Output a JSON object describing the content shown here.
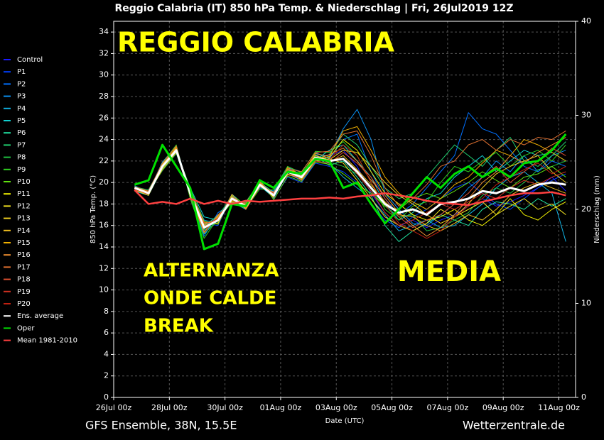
{
  "chart_data": {
    "type": "line",
    "title": "Reggio Calabria  (IT)  850 hPa Temp. & Niederschlag | Fri, 26Jul2019 12Z",
    "y_label": "850 hPa Temp. (°C)",
    "y2_label": "Niederschlag (mm)",
    "x_label": "Date (UTC)",
    "footer_left": "GFS Ensemble, 38N, 15.5E",
    "footer_right": "Wetterzentrale.de",
    "annotations": [
      "REGGIO CALABRIA",
      "ALTERNANZA",
      "ONDE CALDE",
      "BREAK",
      "MEDIA"
    ],
    "grid": true,
    "legend": "left",
    "xlim": [
      0,
      16.6
    ],
    "ylim": [
      0,
      35
    ],
    "y2lim": [
      0,
      40
    ],
    "xticks": [
      {
        "value": 0,
        "label": "26Jul 00z"
      },
      {
        "value": 2,
        "label": "28Jul 00z"
      },
      {
        "value": 4,
        "label": "30Jul 00z"
      },
      {
        "value": 6,
        "label": "01Aug 00z"
      },
      {
        "value": 8,
        "label": "03Aug 00z"
      },
      {
        "value": 10,
        "label": "05Aug 00z"
      },
      {
        "value": 12,
        "label": "07Aug 00z"
      },
      {
        "value": 14,
        "label": "09Aug 00z"
      },
      {
        "value": 16,
        "label": "11Aug 00z"
      }
    ],
    "yticks": [
      0,
      2,
      4,
      6,
      8,
      10,
      12,
      14,
      16,
      18,
      20,
      22,
      24,
      26,
      28,
      30,
      32,
      34
    ],
    "y2ticks": [
      0,
      10,
      20,
      30,
      40
    ],
    "x": [
      0.75,
      1.25,
      1.75,
      2.25,
      2.75,
      3.25,
      3.75,
      4.25,
      4.75,
      5.25,
      5.75,
      6.25,
      6.75,
      7.25,
      7.75,
      8.25,
      8.75,
      9.25,
      9.75,
      10.25,
      10.75,
      11.25,
      11.75,
      12.25,
      12.75,
      13.25,
      13.75,
      14.25,
      14.75,
      15.25,
      15.75,
      16.25
    ],
    "series": [
      {
        "name": "Control",
        "color": "#1a1aff",
        "values": [
          19.4,
          19.1,
          21.8,
          23.2,
          18.8,
          15.5,
          16.8,
          18.4,
          17.6,
          19.6,
          19.0,
          21.3,
          20.8,
          22.6,
          22.5,
          23.0,
          21.5,
          19.0,
          17.2,
          16.0,
          16.5,
          15.8,
          16.5,
          17.0,
          17.8,
          18.5,
          17.8,
          18.2,
          18.8,
          19.5,
          20.5,
          19.2
        ]
      },
      {
        "name": "P1",
        "color": "#0040ff",
        "values": [
          19.6,
          19.0,
          21.2,
          22.8,
          19.3,
          16.2,
          16.0,
          18.8,
          17.5,
          20.1,
          18.5,
          20.5,
          20.0,
          21.8,
          21.5,
          21.0,
          20.0,
          18.0,
          16.5,
          15.8,
          16.8,
          17.5,
          18.5,
          19.5,
          20.0,
          19.0,
          18.0,
          17.5,
          18.5,
          19.5,
          20.2,
          20.8
        ]
      },
      {
        "name": "P2",
        "color": "#0070ff",
        "values": [
          19.3,
          18.9,
          21.6,
          23.3,
          18.6,
          15.0,
          17.2,
          18.0,
          17.9,
          19.5,
          19.2,
          21.4,
          21.0,
          22.8,
          22.2,
          24.0,
          24.5,
          21.0,
          18.5,
          17.0,
          18.0,
          19.5,
          21.0,
          22.5,
          26.5,
          25.0,
          24.5,
          23.0,
          21.5,
          21.0,
          22.0,
          21.5
        ]
      },
      {
        "name": "P3",
        "color": "#0a90f0",
        "values": [
          19.5,
          19.2,
          21.4,
          23.1,
          19.2,
          16.5,
          16.2,
          18.6,
          18.0,
          20.2,
          18.7,
          20.8,
          20.2,
          22.0,
          22.4,
          25.0,
          26.8,
          24.0,
          19.0,
          17.5,
          16.2,
          16.0,
          17.0,
          18.0,
          19.5,
          20.5,
          22.0,
          21.0,
          22.5,
          21.0,
          22.5,
          23.0
        ]
      },
      {
        "name": "P4",
        "color": "#10b0e0",
        "values": [
          19.7,
          19.1,
          21.9,
          23.4,
          18.9,
          15.8,
          17.0,
          18.2,
          17.5,
          19.8,
          18.9,
          21.2,
          20.5,
          22.5,
          21.8,
          20.5,
          19.5,
          18.5,
          17.0,
          15.5,
          16.0,
          16.5,
          15.8,
          16.0,
          17.0,
          18.0,
          19.5,
          20.5,
          21.0,
          20.0,
          19.0,
          14.5
        ]
      },
      {
        "name": "P5",
        "color": "#10d0d0",
        "values": [
          19.2,
          18.8,
          21.3,
          22.9,
          19.5,
          16.8,
          16.5,
          18.9,
          17.8,
          19.7,
          18.6,
          20.9,
          20.7,
          22.1,
          23.0,
          23.5,
          22.0,
          20.5,
          18.0,
          16.5,
          17.2,
          18.5,
          19.0,
          20.5,
          21.5,
          22.5,
          21.0,
          22.0,
          23.0,
          22.5,
          22.8,
          22.0
        ]
      },
      {
        "name": "P6",
        "color": "#20e0a0",
        "values": [
          19.4,
          19.0,
          21.5,
          23.0,
          18.7,
          15.2,
          16.6,
          18.3,
          18.2,
          20.0,
          19.1,
          21.1,
          20.4,
          22.4,
          21.6,
          22.0,
          20.5,
          18.8,
          16.0,
          14.5,
          15.5,
          16.2,
          17.0,
          16.5,
          16.0,
          17.5,
          18.2,
          18.0,
          17.5,
          18.5,
          17.8,
          18.5
        ]
      },
      {
        "name": "P7",
        "color": "#20d070",
        "values": [
          19.6,
          19.3,
          21.7,
          23.2,
          19.1,
          16.0,
          16.9,
          18.7,
          17.7,
          19.9,
          18.8,
          21.0,
          20.6,
          22.2,
          22.6,
          24.5,
          23.5,
          21.5,
          19.5,
          18.5,
          19.0,
          20.5,
          22.0,
          23.5,
          22.5,
          21.5,
          23.0,
          24.2,
          22.0,
          21.5,
          22.5,
          23.8
        ]
      },
      {
        "name": "P8",
        "color": "#20c040",
        "values": [
          19.5,
          19.1,
          21.1,
          22.7,
          19.0,
          15.6,
          16.3,
          18.5,
          18.1,
          19.6,
          18.9,
          21.3,
          20.3,
          22.6,
          21.9,
          21.5,
          20.8,
          19.2,
          17.8,
          16.8,
          17.0,
          15.5,
          15.8,
          16.5,
          17.2,
          18.8,
          19.5,
          19.0,
          20.0,
          21.2,
          21.5,
          22.0
        ]
      },
      {
        "name": "P9",
        "color": "#30d020",
        "values": [
          19.4,
          18.9,
          21.8,
          23.5,
          18.5,
          14.8,
          16.7,
          18.1,
          17.6,
          19.4,
          19.3,
          21.5,
          20.9,
          22.9,
          22.8,
          23.8,
          22.5,
          20.0,
          17.5,
          16.5,
          17.8,
          18.2,
          20.0,
          21.5,
          21.0,
          22.0,
          22.8,
          21.5,
          22.5,
          23.0,
          22.0,
          23.5
        ]
      },
      {
        "name": "P10",
        "color": "#60e010",
        "values": [
          19.6,
          19.0,
          21.3,
          23.0,
          19.4,
          16.4,
          16.1,
          18.8,
          17.9,
          20.3,
          18.4,
          20.6,
          20.1,
          21.9,
          21.7,
          20.8,
          19.8,
          19.0,
          17.8,
          17.5,
          18.5,
          19.0,
          18.5,
          19.2,
          20.0,
          21.0,
          20.2,
          19.5,
          20.5,
          20.8,
          21.5,
          20.5
        ]
      },
      {
        "name": "P11",
        "color": "#f0f000",
        "values": [
          19.5,
          19.2,
          21.6,
          23.1,
          18.9,
          15.9,
          16.4,
          18.6,
          17.8,
          19.8,
          18.7,
          21.1,
          20.6,
          22.3,
          22.3,
          24.0,
          23.0,
          21.0,
          19.0,
          18.0,
          17.0,
          16.5,
          16.8,
          17.5,
          16.5,
          16.0,
          17.0,
          18.5,
          17.0,
          16.5,
          17.5,
          18.2
        ]
      },
      {
        "name": "P12",
        "color": "#f0e020",
        "values": [
          19.3,
          18.8,
          21.4,
          22.9,
          19.2,
          16.1,
          16.6,
          18.4,
          17.7,
          19.9,
          19.0,
          21.0,
          20.4,
          22.0,
          22.2,
          21.8,
          20.2,
          18.5,
          16.8,
          16.0,
          15.5,
          16.2,
          17.5,
          16.8,
          17.5,
          18.2,
          17.0,
          17.8,
          18.5,
          17.5,
          18.0,
          17.0
        ]
      },
      {
        "name": "P13",
        "color": "#f0d020",
        "values": [
          19.6,
          19.1,
          21.7,
          23.2,
          19.0,
          15.7,
          16.8,
          18.2,
          17.9,
          20.0,
          18.8,
          21.2,
          20.8,
          22.5,
          22.1,
          23.0,
          22.8,
          21.5,
          20.0,
          18.8,
          18.0,
          17.0,
          16.2,
          16.8,
          18.0,
          19.5,
          20.8,
          21.5,
          22.0,
          22.5,
          21.0,
          20.0
        ]
      },
      {
        "name": "P14",
        "color": "#f0c020",
        "values": [
          19.4,
          19.0,
          21.2,
          22.8,
          19.1,
          16.3,
          16.2,
          18.7,
          17.6,
          19.7,
          18.9,
          20.8,
          20.3,
          22.2,
          21.9,
          22.5,
          21.2,
          19.8,
          18.2,
          17.0,
          16.8,
          16.0,
          15.5,
          16.2,
          17.0,
          16.5,
          17.5,
          18.8,
          19.5,
          20.0,
          19.5,
          19.0
        ]
      },
      {
        "name": "P15",
        "color": "#f0b000",
        "values": [
          19.5,
          19.1,
          21.6,
          23.3,
          18.8,
          15.4,
          16.9,
          18.3,
          18.0,
          19.9,
          18.6,
          21.4,
          20.7,
          22.7,
          22.4,
          24.8,
          25.2,
          23.0,
          20.5,
          19.0,
          18.2,
          17.5,
          18.5,
          19.8,
          20.5,
          21.8,
          23.0,
          22.5,
          24.0,
          23.5,
          22.8,
          22.0
        ]
      },
      {
        "name": "P16",
        "color": "#f09030",
        "values": [
          19.3,
          18.9,
          21.5,
          23.0,
          19.3,
          16.0,
          16.4,
          18.9,
          17.5,
          19.6,
          19.1,
          20.7,
          20.5,
          22.1,
          22.6,
          23.2,
          22.0,
          20.2,
          18.8,
          17.2,
          16.0,
          15.0,
          15.8,
          17.0,
          18.5,
          20.0,
          21.0,
          22.5,
          21.8,
          22.8,
          23.5,
          24.2
        ]
      },
      {
        "name": "P17",
        "color": "#e07030",
        "values": [
          19.6,
          19.2,
          21.8,
          23.4,
          18.7,
          15.3,
          17.0,
          18.1,
          18.1,
          20.1,
          18.7,
          21.3,
          21.0,
          22.8,
          22.9,
          24.5,
          24.8,
          22.5,
          19.5,
          17.8,
          18.5,
          19.8,
          21.5,
          22.0,
          23.5,
          24.0,
          23.0,
          24.0,
          23.5,
          24.2,
          24.0,
          24.8
        ]
      },
      {
        "name": "P18",
        "color": "#e05030",
        "values": [
          19.4,
          19.0,
          21.4,
          22.9,
          19.2,
          16.2,
          16.5,
          18.5,
          17.7,
          19.8,
          19.0,
          21.0,
          20.2,
          22.0,
          21.8,
          22.8,
          21.8,
          20.5,
          18.5,
          16.8,
          15.8,
          16.5,
          17.0,
          18.0,
          19.0,
          20.5,
          21.5,
          20.0,
          21.0,
          22.0,
          23.2,
          22.5
        ]
      },
      {
        "name": "P19",
        "color": "#d03020",
        "values": [
          19.5,
          19.1,
          21.6,
          23.1,
          19.0,
          15.8,
          16.7,
          18.6,
          17.9,
          19.9,
          18.8,
          21.1,
          20.6,
          22.4,
          22.0,
          22.2,
          20.8,
          19.2,
          17.2,
          16.0,
          16.5,
          17.2,
          18.0,
          17.5,
          18.2,
          19.0,
          18.5,
          19.5,
          20.2,
          19.8,
          20.5,
          21.0
        ]
      },
      {
        "name": "P20",
        "color": "#c02010",
        "values": [
          19.4,
          18.9,
          21.5,
          23.0,
          19.1,
          15.9,
          16.6,
          18.4,
          17.8,
          19.7,
          18.9,
          21.0,
          20.5,
          22.3,
          22.1,
          23.5,
          22.5,
          20.0,
          18.0,
          16.2,
          15.5,
          14.8,
          15.5,
          16.8,
          17.8,
          18.5,
          19.8,
          20.5,
          21.2,
          21.8,
          20.8,
          21.5
        ]
      },
      {
        "name": "Ens. average",
        "color": "#ffffff",
        "values": [
          19.5,
          19.0,
          21.5,
          23.0,
          19.0,
          15.8,
          16.5,
          18.5,
          17.8,
          19.8,
          18.8,
          21.0,
          20.5,
          22.3,
          22.0,
          22.2,
          21.0,
          19.5,
          18.0,
          17.2,
          17.5,
          17.0,
          18.0,
          18.2,
          18.5,
          19.2,
          19.0,
          19.5,
          19.2,
          19.8,
          20.0,
          19.8
        ]
      },
      {
        "name": "Oper",
        "color": "#00e000",
        "values": [
          19.8,
          20.2,
          23.5,
          21.5,
          19.5,
          13.8,
          14.3,
          18.0,
          17.8,
          20.2,
          19.5,
          21.0,
          20.8,
          22.2,
          22.0,
          19.5,
          20.0,
          18.0,
          16.2,
          17.5,
          19.0,
          20.5,
          19.5,
          20.8,
          21.5,
          20.5,
          21.3,
          20.5,
          21.8,
          22.0,
          23.0,
          24.5
        ]
      },
      {
        "name": "Mean 1981-2010",
        "color": "#ff4040",
        "values": [
          19.3,
          18.0,
          18.2,
          18.0,
          18.5,
          18.0,
          18.3,
          18.0,
          18.3,
          18.2,
          18.3,
          18.4,
          18.5,
          18.5,
          18.6,
          18.5,
          18.7,
          18.8,
          19.0,
          18.8,
          18.6,
          18.3,
          18.1,
          18.0,
          17.9,
          18.2,
          18.5,
          18.8,
          19.0,
          19.0,
          19.1,
          18.8
        ]
      }
    ]
  }
}
